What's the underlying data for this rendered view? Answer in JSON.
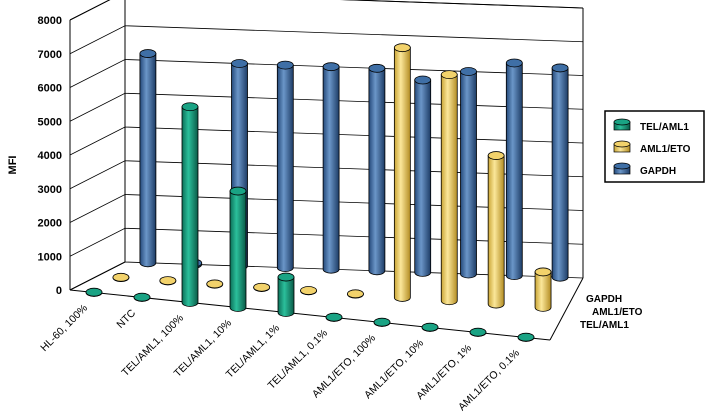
{
  "chart_data": {
    "type": "bar",
    "style": "3d-cylinder",
    "title": "",
    "xlabel": "",
    "ylabel": "MFI",
    "ylim": [
      0,
      8000
    ],
    "yticks": [
      0,
      1000,
      2000,
      3000,
      4000,
      5000,
      6000,
      7000,
      8000
    ],
    "grid": true,
    "legend_position": "right",
    "categories": [
      "HL-60, 100%",
      "NTC",
      "TEL/AML1, 100%",
      "TEL/AML1, 10%",
      "TEL/AML1, 1%",
      "TEL/AML1, 0.1%",
      "AML1/ETO, 100%",
      "AML1/ETO, 10%",
      "AML1/ETO, 1%",
      "AML1/ETO, 0.1%"
    ],
    "depth_labels": [
      "GAPDH",
      "AML1/ETO",
      "TEL/AML1"
    ],
    "series": [
      {
        "name": "TEL/AML1",
        "color": "#1aa384",
        "values": [
          10,
          10,
          5800,
          3450,
          1050,
          10,
          10,
          10,
          10,
          10
        ]
      },
      {
        "name": "AML1/ETO",
        "color": "#f2d26b",
        "values": [
          10,
          10,
          10,
          10,
          10,
          10,
          7400,
          6700,
          4400,
          1050
        ]
      },
      {
        "name": "GAPDH",
        "color": "#3f6fa6",
        "values": [
          6200,
          40,
          6000,
          6000,
          6000,
          6000,
          5700,
          6000,
          6300,
          6200
        ]
      }
    ]
  }
}
